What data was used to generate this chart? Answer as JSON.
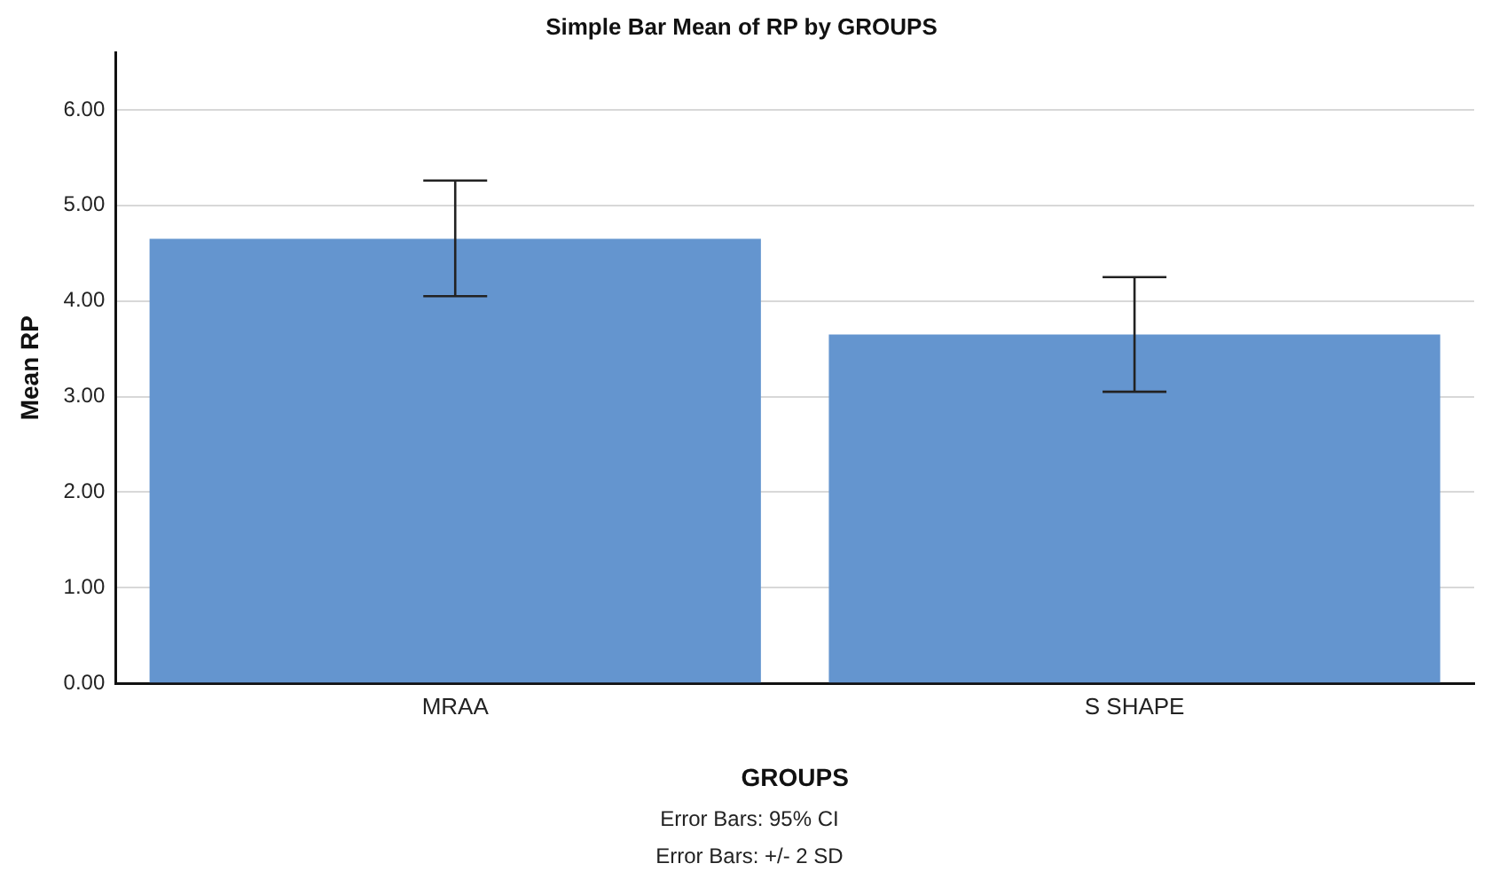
{
  "chart_data": {
    "type": "bar",
    "title": "Simple Bar Mean of RP by GROUPS",
    "xlabel": "GROUPS",
    "ylabel": "Mean RP",
    "categories": [
      "MRAA",
      "S SHAPE"
    ],
    "values": [
      4.65,
      3.65
    ],
    "color": "#6495cf",
    "errors": [
      [
        4.05,
        5.26
      ],
      [
        3.05,
        4.25
      ]
    ],
    "ylim": [
      0,
      6.6
    ],
    "yticks": [
      {
        "value": 0,
        "label": "0.00"
      },
      {
        "value": 1,
        "label": "1.00"
      },
      {
        "value": 2,
        "label": "2.00"
      },
      {
        "value": 3,
        "label": "3.00"
      },
      {
        "value": 4,
        "label": "4.00"
      },
      {
        "value": 5,
        "label": "5.00"
      },
      {
        "value": 6,
        "label": "6.00"
      }
    ],
    "grid": "y",
    "annotations": [
      "Error Bars: 95% CI",
      "Error Bars: +/- 2 SD"
    ]
  }
}
